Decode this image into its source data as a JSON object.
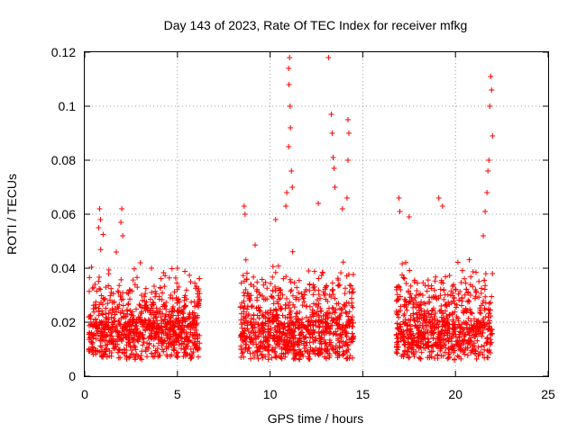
{
  "chart_data": {
    "type": "scatter",
    "title": "Day 143 of 2023, Rate Of TEC Index for receiver mfkg",
    "xlabel": "GPS time / hours",
    "ylabel": "ROTI / TECUs",
    "xlim": [
      0,
      25
    ],
    "ylim": [
      0,
      0.12
    ],
    "x_ticks": [
      "0",
      "5",
      "10",
      "15",
      "20",
      "25"
    ],
    "y_ticks": [
      "0",
      "0.02",
      "0.04",
      "0.06",
      "0.08",
      "0.1",
      "0.12"
    ],
    "x_tick_values": [
      0,
      5,
      10,
      15,
      20,
      25
    ],
    "y_tick_values": [
      0,
      0.02,
      0.04,
      0.06,
      0.08,
      0.1,
      0.12
    ],
    "grid": true,
    "marker": "+",
    "color": "#ff0000",
    "segments": [
      {
        "x_start": 0.2,
        "x_end": 6.2
      },
      {
        "x_start": 8.4,
        "x_end": 14.5
      },
      {
        "x_start": 16.8,
        "x_end": 22.0
      }
    ],
    "peaks": [
      {
        "x": 0.8,
        "y": 0.062
      },
      {
        "x": 0.85,
        "y": 0.058
      },
      {
        "x": 0.75,
        "y": 0.055
      },
      {
        "x": 2.0,
        "y": 0.062
      },
      {
        "x": 1.95,
        "y": 0.057
      },
      {
        "x": 2.05,
        "y": 0.052
      },
      {
        "x": 1.7,
        "y": 0.046
      },
      {
        "x": 3.0,
        "y": 0.042
      },
      {
        "x": 3.6,
        "y": 0.04
      },
      {
        "x": 5.0,
        "y": 0.04
      },
      {
        "x": 8.6,
        "y": 0.063
      },
      {
        "x": 8.65,
        "y": 0.06
      },
      {
        "x": 10.3,
        "y": 0.058
      },
      {
        "x": 10.85,
        "y": 0.063
      },
      {
        "x": 10.9,
        "y": 0.068
      },
      {
        "x": 11.05,
        "y": 0.118
      },
      {
        "x": 11.0,
        "y": 0.114
      },
      {
        "x": 11.02,
        "y": 0.108
      },
      {
        "x": 11.08,
        "y": 0.1
      },
      {
        "x": 11.1,
        "y": 0.092
      },
      {
        "x": 11.0,
        "y": 0.085
      },
      {
        "x": 11.15,
        "y": 0.076
      },
      {
        "x": 11.2,
        "y": 0.07
      },
      {
        "x": 13.15,
        "y": 0.118
      },
      {
        "x": 13.3,
        "y": 0.097
      },
      {
        "x": 13.35,
        "y": 0.09
      },
      {
        "x": 13.4,
        "y": 0.081
      },
      {
        "x": 13.45,
        "y": 0.077
      },
      {
        "x": 13.5,
        "y": 0.07
      },
      {
        "x": 14.2,
        "y": 0.095
      },
      {
        "x": 14.25,
        "y": 0.09
      },
      {
        "x": 14.2,
        "y": 0.08
      },
      {
        "x": 14.15,
        "y": 0.066
      },
      {
        "x": 12.6,
        "y": 0.064
      },
      {
        "x": 13.9,
        "y": 0.062
      },
      {
        "x": 16.95,
        "y": 0.066
      },
      {
        "x": 17.0,
        "y": 0.061
      },
      {
        "x": 17.5,
        "y": 0.059
      },
      {
        "x": 19.1,
        "y": 0.066
      },
      {
        "x": 19.3,
        "y": 0.063
      },
      {
        "x": 21.9,
        "y": 0.111
      },
      {
        "x": 21.95,
        "y": 0.106
      },
      {
        "x": 21.85,
        "y": 0.1
      },
      {
        "x": 22.0,
        "y": 0.089
      },
      {
        "x": 21.8,
        "y": 0.08
      },
      {
        "x": 21.75,
        "y": 0.076
      },
      {
        "x": 21.7,
        "y": 0.068
      },
      {
        "x": 21.6,
        "y": 0.061
      },
      {
        "x": 21.5,
        "y": 0.052
      }
    ]
  }
}
